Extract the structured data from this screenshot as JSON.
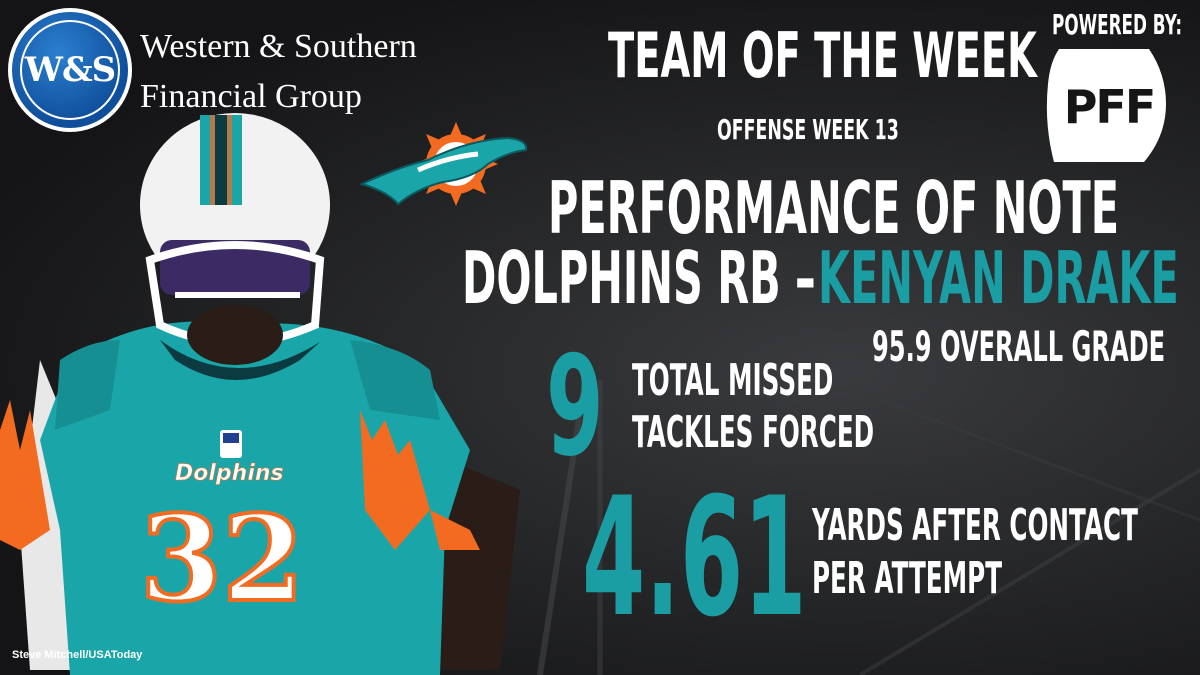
{
  "sponsor": {
    "logo_text": "W&S",
    "name_line1": "Western & Southern",
    "name_line2": "Financial Group"
  },
  "powered": {
    "label": "POWERED BY:",
    "logo_text": "PFF"
  },
  "header": {
    "title": "TEAM OF THE WEEK",
    "subtitle": "OFFENSE WEEK 13"
  },
  "feature": {
    "heading": "PERFORMANCE OF NOTE",
    "team_position": "DOLPHINS RB –",
    "player_name": "KENYAN DRAKE",
    "grade": "95.9 OVERALL GRADE"
  },
  "stats": [
    {
      "value": "9",
      "label_line1": "TOTAL MISSED",
      "label_line2": "TACKLES FORCED"
    },
    {
      "value": "4.61",
      "label_line1": "YARDS AFTER CONTACT",
      "label_line2": "PER ATTEMPT"
    }
  ],
  "photo": {
    "jersey_wordmark": "Dolphins",
    "jersey_number": "32",
    "credit": "Steve Mitchell/USAToday"
  },
  "colors": {
    "teal": "#1a9da3",
    "orange": "#f26b21",
    "sponsor_blue": "#0f4e9a"
  }
}
